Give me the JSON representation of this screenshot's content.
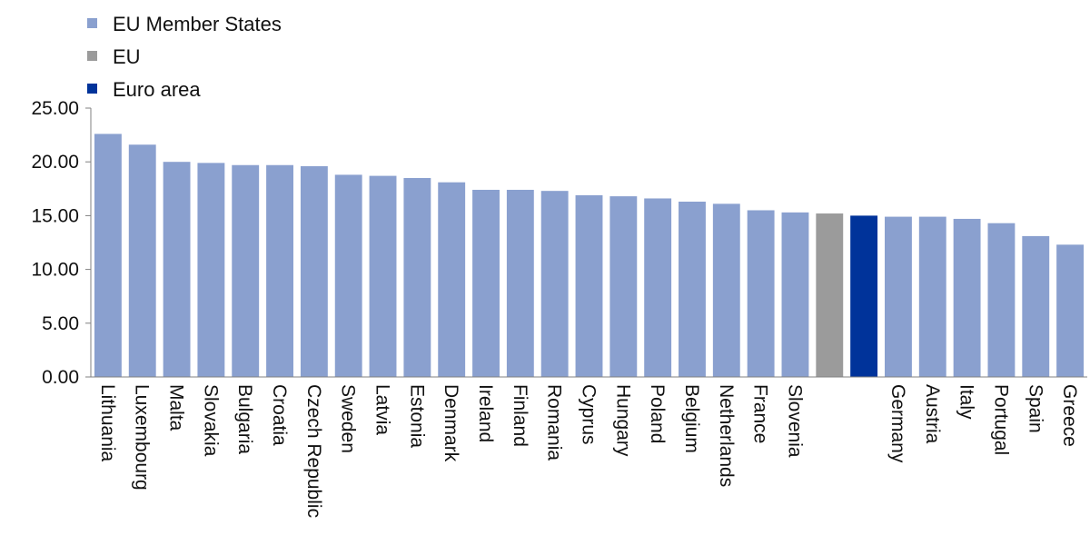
{
  "chart_data": {
    "type": "bar",
    "title": "",
    "xlabel": "",
    "ylabel": "",
    "ylim": [
      0,
      25
    ],
    "yticks": [
      "0.00",
      "5.00",
      "10.00",
      "15.00",
      "20.00",
      "25.00"
    ],
    "grid": false,
    "legend_position": "top-left",
    "legend": [
      {
        "label": "EU Member States",
        "color": "#8aa0cf"
      },
      {
        "label": "EU",
        "color": "#9b9b9b"
      },
      {
        "label": "Euro area",
        "color": "#00339a"
      }
    ],
    "bars": [
      {
        "category": "Lithuania",
        "value": 22.6,
        "group": 0
      },
      {
        "category": "Luxembourg",
        "value": 21.6,
        "group": 0
      },
      {
        "category": "Malta",
        "value": 20.0,
        "group": 0
      },
      {
        "category": "Slovakia",
        "value": 19.9,
        "group": 0
      },
      {
        "category": "Bulgaria",
        "value": 19.7,
        "group": 0
      },
      {
        "category": "Croatia",
        "value": 19.7,
        "group": 0
      },
      {
        "category": "Czech Republic",
        "value": 19.6,
        "group": 0
      },
      {
        "category": "Sweden",
        "value": 18.8,
        "group": 0
      },
      {
        "category": "Latvia",
        "value": 18.7,
        "group": 0
      },
      {
        "category": "Estonia",
        "value": 18.5,
        "group": 0
      },
      {
        "category": "Denmark",
        "value": 18.1,
        "group": 0
      },
      {
        "category": "Ireland",
        "value": 17.4,
        "group": 0
      },
      {
        "category": "Finland",
        "value": 17.4,
        "group": 0
      },
      {
        "category": "Romania",
        "value": 17.3,
        "group": 0
      },
      {
        "category": "Cyprus",
        "value": 16.9,
        "group": 0
      },
      {
        "category": "Hungary",
        "value": 16.8,
        "group": 0
      },
      {
        "category": "Poland",
        "value": 16.6,
        "group": 0
      },
      {
        "category": "Belgium",
        "value": 16.3,
        "group": 0
      },
      {
        "category": "Netherlands",
        "value": 16.1,
        "group": 0
      },
      {
        "category": "France",
        "value": 15.5,
        "group": 0
      },
      {
        "category": "Slovenia",
        "value": 15.3,
        "group": 0
      },
      {
        "category": "",
        "value": 15.2,
        "group": 1
      },
      {
        "category": "",
        "value": 15.0,
        "group": 2
      },
      {
        "category": "Germany",
        "value": 14.9,
        "group": 0
      },
      {
        "category": "Austria",
        "value": 14.9,
        "group": 0
      },
      {
        "category": "Italy",
        "value": 14.7,
        "group": 0
      },
      {
        "category": "Portugal",
        "value": 14.3,
        "group": 0
      },
      {
        "category": "Spain",
        "value": 13.1,
        "group": 0
      },
      {
        "category": "Greece",
        "value": 12.3,
        "group": 0
      }
    ]
  }
}
